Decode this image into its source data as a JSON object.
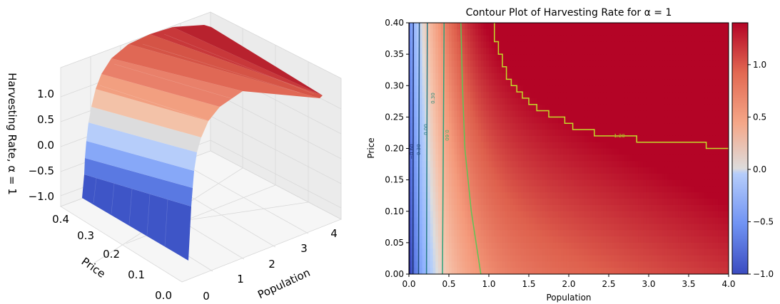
{
  "chart_data": [
    {
      "type": "surface3d",
      "title": "",
      "zlabel": "Harvesting Rate, α = 1",
      "xlabel": "Population",
      "ylabel": "Price",
      "x_ticks": [
        "0",
        "1",
        "2",
        "3",
        "4"
      ],
      "y_ticks": [
        "0.0",
        "0.1",
        "0.2",
        "0.3",
        "0.4"
      ],
      "z_ticks": [
        "−1.0",
        "−0.5",
        "0.0",
        "0.5",
        "1.0"
      ],
      "xlim": [
        0,
        4
      ],
      "ylim": [
        0,
        0.4
      ],
      "zlim": [
        -1.0,
        1.4
      ],
      "colormap": "coolwarm",
      "surface_samples": {
        "population": [
          0.0,
          0.1,
          0.2,
          0.3,
          0.5,
          0.75,
          1.0,
          1.5,
          2.0,
          3.0,
          4.0
        ],
        "rate": [
          -1.0,
          -0.75,
          -0.45,
          -0.1,
          0.35,
          0.7,
          0.9,
          1.05,
          1.15,
          1.25,
          1.3
        ]
      }
    },
    {
      "type": "contour",
      "title": "Contour Plot of Harvesting Rate for α = 1",
      "xlabel": "Population",
      "ylabel": "Price",
      "xlim": [
        0.0,
        4.0
      ],
      "ylim": [
        0.0,
        0.4
      ],
      "x_ticks": [
        "0.0",
        "0.5",
        "1.0",
        "1.5",
        "2.0",
        "2.5",
        "3.0",
        "3.5",
        "4.0"
      ],
      "y_ticks": [
        "0.00",
        "0.05",
        "0.10",
        "0.15",
        "0.20",
        "0.25",
        "0.30",
        "0.35",
        "0.40"
      ],
      "colormap": "coolwarm",
      "colorbar": {
        "range": [
          -1.0,
          1.4
        ],
        "ticks": [
          "−1.0",
          "−0.5",
          "0.0",
          "0.5",
          "1.0"
        ]
      },
      "contour_labels": [
        "−0.60",
        "−0.30",
        "0.00",
        "0.30",
        "0.60",
        "1.20"
      ],
      "contour_levels": [
        {
          "level": -0.9,
          "x_at_price": [
            [
              0.0,
              0.005
            ],
            [
              0.4,
              0.003
            ]
          ],
          "color": "#10064c"
        },
        {
          "level": -0.6,
          "x_at_price": [
            [
              0.0,
              0.05
            ],
            [
              0.4,
              0.055
            ]
          ],
          "color": "#1a2e6e"
        },
        {
          "level": -0.3,
          "x_at_price": [
            [
              0.0,
              0.12
            ],
            [
              0.4,
              0.13
            ]
          ],
          "color": "#1f4e80"
        },
        {
          "level": 0.0,
          "x_at_price": [
            [
              0.0,
              0.22
            ],
            [
              0.4,
              0.23
            ]
          ],
          "color": "#267a86"
        },
        {
          "level": 0.3,
          "x_at_price": [
            [
              0.0,
              0.42
            ],
            [
              0.4,
              0.44
            ]
          ],
          "color": "#2ea27a"
        },
        {
          "level": 0.6,
          "x_at_price": [
            [
              0.0,
              0.9
            ],
            [
              0.1,
              0.78
            ],
            [
              0.2,
              0.7
            ],
            [
              0.3,
              0.67
            ],
            [
              0.4,
              0.65
            ]
          ],
          "color": "#5ec455"
        },
        {
          "level": 1.2,
          "x_at_price": [
            [
              0.2,
              4.0
            ],
            [
              0.2,
              3.72
            ],
            [
              0.21,
              3.72
            ],
            [
              0.21,
              2.85
            ],
            [
              0.22,
              2.85
            ],
            [
              0.22,
              2.32
            ],
            [
              0.23,
              2.32
            ],
            [
              0.23,
              2.05
            ],
            [
              0.24,
              2.05
            ],
            [
              0.24,
              1.95
            ],
            [
              0.25,
              1.95
            ],
            [
              0.25,
              1.75
            ],
            [
              0.26,
              1.75
            ],
            [
              0.26,
              1.6
            ],
            [
              0.27,
              1.6
            ],
            [
              0.27,
              1.5
            ],
            [
              0.28,
              1.5
            ],
            [
              0.28,
              1.42
            ],
            [
              0.29,
              1.42
            ],
            [
              0.29,
              1.35
            ],
            [
              0.3,
              1.35
            ],
            [
              0.3,
              1.28
            ],
            [
              0.31,
              1.28
            ],
            [
              0.31,
              1.22
            ],
            [
              0.33,
              1.22
            ],
            [
              0.33,
              1.17
            ],
            [
              0.35,
              1.17
            ],
            [
              0.35,
              1.12
            ],
            [
              0.37,
              1.12
            ],
            [
              0.37,
              1.07
            ],
            [
              0.4,
              1.07
            ]
          ],
          "color": "#c2dc2a"
        }
      ]
    }
  ]
}
